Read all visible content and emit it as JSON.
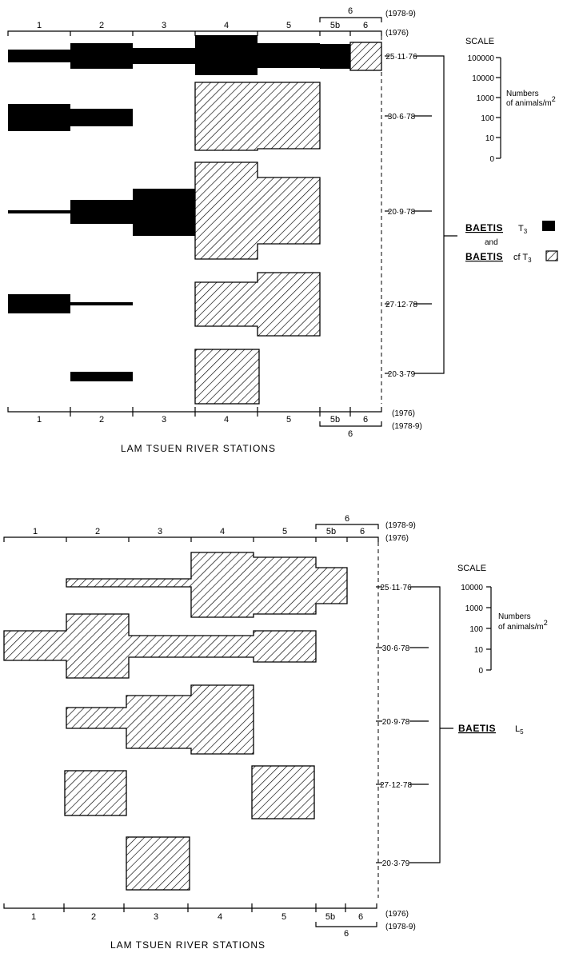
{
  "colors": {
    "ink": "#000000",
    "paper": "#ffffff"
  },
  "icons": {
    "hatched_key": "hatched-swatch-icon",
    "solid_key": "solid-swatch-icon"
  },
  "panels": [
    {
      "stations_top": [
        "1",
        "2",
        "3",
        "4",
        "5",
        "5b",
        "6"
      ],
      "stations_bottom": [
        "1",
        "2",
        "3",
        "4",
        "5",
        "5b",
        "6"
      ],
      "merged_station": "6",
      "year_1976": "(1976)",
      "year_1978": "(1978-9)",
      "dates": [
        "25·11·76",
        "30·6·78",
        "20·9·78",
        "27·12·78",
        "20·3·79"
      ],
      "x_title": "LAM TSUEN RIVER STATIONS",
      "scale": {
        "title": "SCALE",
        "ticks": [
          "100000",
          "10000",
          "1000",
          "100",
          "10",
          "0"
        ],
        "label_line1": "Numbers",
        "label_line2": "of animals/m",
        "label_sup": "2"
      },
      "legend": {
        "species1": "BAETIS",
        "suffix1": "T",
        "sub1": "3",
        "and_word": "and",
        "species2": "BAETIS",
        "suffix2": "cf T",
        "sub2": "3"
      }
    },
    {
      "stations_top": [
        "1",
        "2",
        "3",
        "4",
        "5",
        "5b",
        "6"
      ],
      "stations_bottom": [
        "1",
        "2",
        "3",
        "4",
        "5",
        "5b",
        "6"
      ],
      "merged_station": "6",
      "year_1976": "(1976)",
      "year_1978": "(1978-9)",
      "dates": [
        "25·11·76",
        "30·6·78",
        "20·9·78",
        "27·12·78",
        "20·3·79"
      ],
      "x_title": "LAM TSUEN RIVER STATIONS",
      "scale": {
        "title": "SCALE",
        "ticks": [
          "10000",
          "1000",
          "100",
          "10",
          "0"
        ],
        "label_line1": "Numbers",
        "label_line2": "of animals/m",
        "label_sup": "2"
      },
      "legend": {
        "species1": "BAETIS",
        "suffix1": "L",
        "sub1": "5"
      }
    }
  ]
}
